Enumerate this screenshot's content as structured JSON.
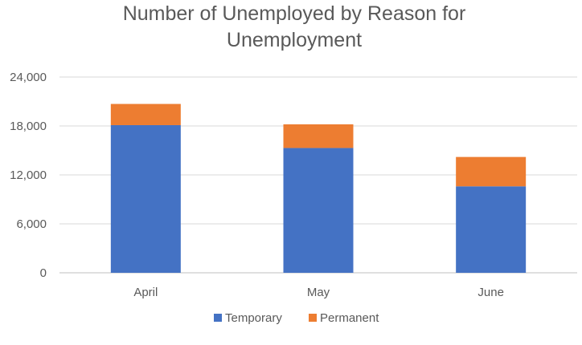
{
  "chart_data": {
    "type": "bar",
    "stacked": true,
    "title_lines": [
      "Number of Unemployed by Reason for",
      "Unemployment"
    ],
    "categories": [
      "April",
      "May",
      "June"
    ],
    "series": [
      {
        "name": "Temporary",
        "values": [
          18100,
          15300,
          10600
        ],
        "color": "#4472c4"
      },
      {
        "name": "Permanent",
        "values": [
          2600,
          2900,
          3600
        ],
        "color": "#ed7d31"
      }
    ],
    "ylim": [
      0,
      24000
    ],
    "yticks": [
      0,
      6000,
      12000,
      18000,
      24000
    ],
    "ytick_labels": [
      "0",
      "6,000",
      "12,000",
      "18,000",
      "24,000"
    ],
    "grid": true,
    "legend_position": "bottom"
  }
}
